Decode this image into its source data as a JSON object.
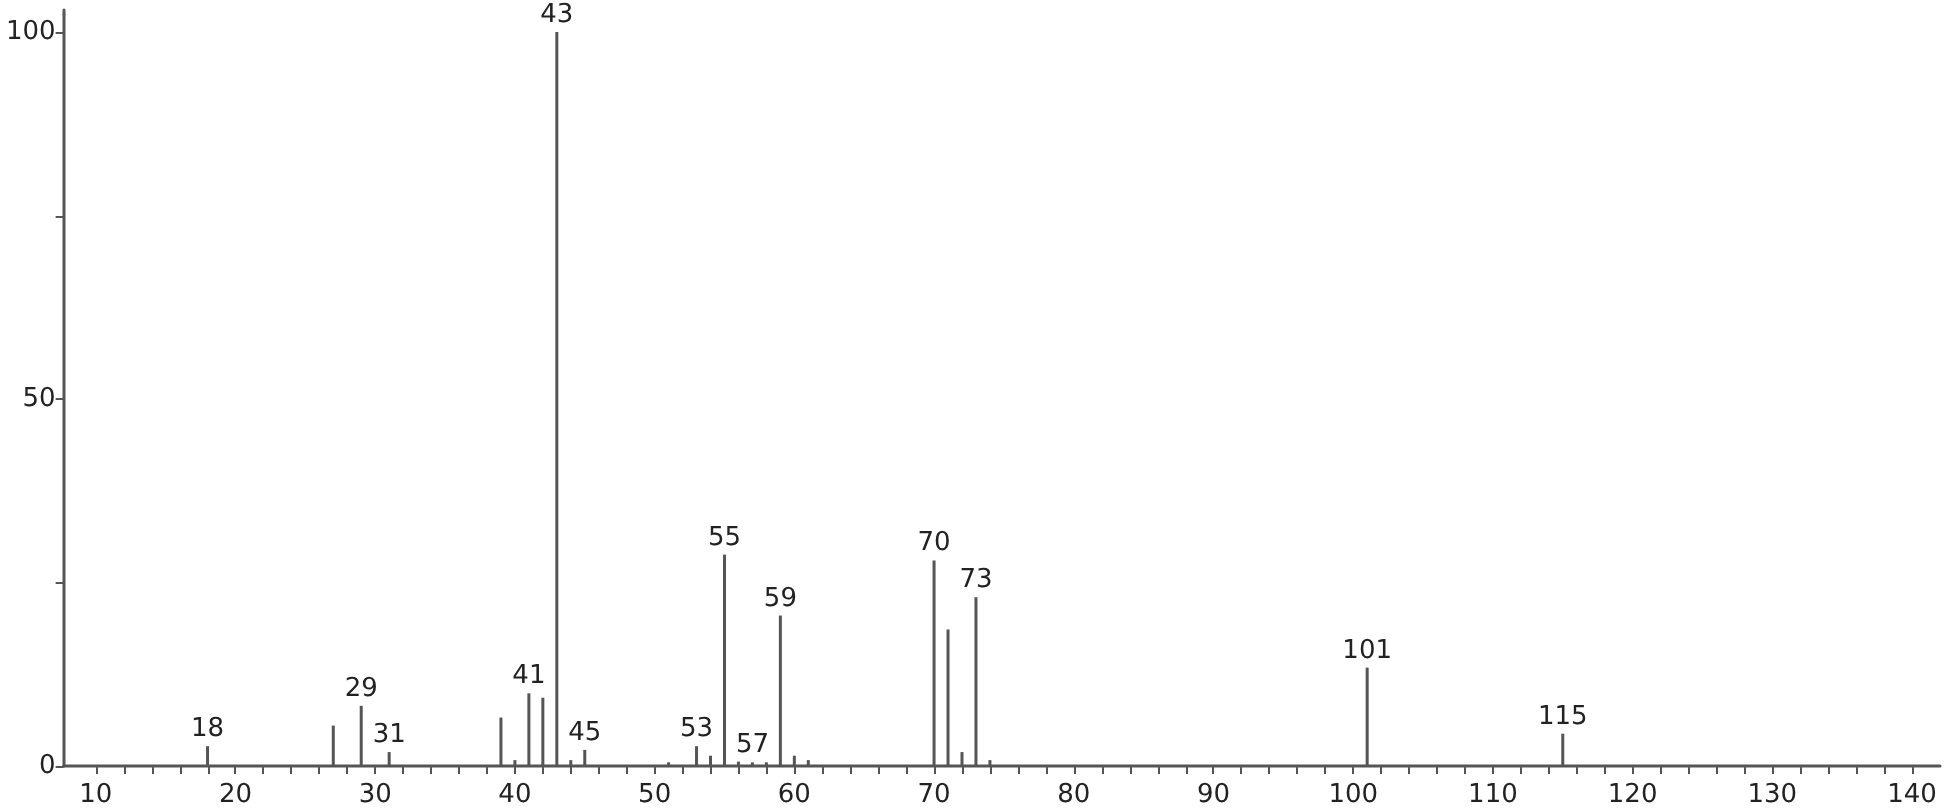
{
  "chart_data": {
    "type": "bar",
    "color": "#555555",
    "x": [
      18,
      27,
      29,
      31,
      39,
      40,
      41,
      42,
      43,
      44,
      45,
      51,
      53,
      54,
      55,
      56,
      57,
      58,
      59,
      60,
      61,
      69,
      70,
      71,
      72,
      73,
      74,
      101,
      115
    ],
    "values": [
      2.7,
      5.5,
      8.2,
      1.9,
      6.6,
      0.8,
      9.9,
      9.3,
      100,
      0.8,
      2.2,
      0.5,
      2.7,
      1.4,
      28.8,
      0.6,
      0.5,
      0.5,
      20.5,
      1.4,
      0.8,
      null,
      28,
      18.6,
      1.9,
      23,
      0.8,
      13.4,
      4.4
    ],
    "xlim": [
      7.7,
      142
    ],
    "xticks": [
      10,
      {
        "value": 12,
        "label": null
      },
      {
        "value": 14,
        "label": null
      },
      {
        "value": 16,
        "label": null
      },
      {
        "value": 18,
        "label": null
      },
      20,
      {
        "value": 22,
        "label": null
      },
      {
        "value": 24,
        "label": null
      },
      {
        "value": 26,
        "label": null
      },
      {
        "value": 28,
        "label": null
      },
      30,
      {
        "value": 32,
        "label": null
      },
      {
        "value": 34,
        "label": null
      },
      {
        "value": 36,
        "label": null
      },
      {
        "value": 38,
        "label": null
      },
      40,
      {
        "value": 42,
        "label": null
      },
      {
        "value": 44,
        "label": null
      },
      {
        "value": 46,
        "label": null
      },
      {
        "value": 48,
        "label": null
      },
      50,
      {
        "value": 52,
        "label": null
      },
      {
        "value": 54,
        "label": null
      },
      {
        "value": 56,
        "label": null
      },
      {
        "value": 58,
        "label": null
      },
      60,
      {
        "value": 62,
        "label": null
      },
      {
        "value": 64,
        "label": null
      },
      {
        "value": 66,
        "label": null
      },
      {
        "value": 68,
        "label": null
      },
      70,
      {
        "value": 72,
        "label": null
      },
      {
        "value": 74,
        "label": null
      },
      {
        "value": 76,
        "label": null
      },
      {
        "value": 78,
        "label": null
      },
      80,
      {
        "value": 82,
        "label": null
      },
      {
        "value": 84,
        "label": null
      },
      {
        "value": 86,
        "label": null
      },
      {
        "value": 88,
        "label": null
      },
      90,
      {
        "value": 92,
        "label": null
      },
      {
        "value": 94,
        "label": null
      },
      {
        "value": 96,
        "label": null
      },
      {
        "value": 98,
        "label": null
      },
      100,
      {
        "value": 102,
        "label": null
      },
      {
        "value": 104,
        "label": null
      },
      {
        "value": 106,
        "label": null
      },
      {
        "value": 108,
        "label": null
      },
      110,
      {
        "value": 112,
        "label": null
      },
      {
        "value": 114,
        "label": null
      },
      {
        "value": 116,
        "label": null
      },
      {
        "value": 118,
        "label": null
      },
      120,
      {
        "value": 122,
        "label": null
      },
      {
        "value": 124,
        "label": null
      },
      {
        "value": 126,
        "label": null
      },
      {
        "value": 128,
        "label": null
      },
      130,
      {
        "value": 132,
        "label": null
      },
      {
        "value": 134,
        "label": null
      },
      {
        "value": 136,
        "label": null
      },
      {
        "value": 138,
        "label": null
      },
      140
    ],
    "ylim": [
      0,
      103
    ],
    "yticks": [
      0,
      {
        "value": 25,
        "label": null
      },
      50,
      {
        "value": 75,
        "label": null
      },
      100
    ],
    "grid": false,
    "annotations": [
      {
        "text": "18",
        "x": 18,
        "y": 2.7
      },
      {
        "text": "29",
        "x": 29,
        "y": 8.2
      },
      {
        "text": "31",
        "x": 31,
        "y": 1.9
      },
      {
        "text": "41",
        "x": 41,
        "y": 9.9
      },
      {
        "text": "43",
        "x": 43,
        "y": 100
      },
      {
        "text": "45",
        "x": 45,
        "y": 2.2
      },
      {
        "text": "53",
        "x": 53,
        "y": 2.7
      },
      {
        "text": "55",
        "x": 55,
        "y": 28.8
      },
      {
        "text": "57",
        "x": 57,
        "y": 0.5
      },
      {
        "text": "59",
        "x": 59,
        "y": 20.5
      },
      {
        "text": "70",
        "x": 70,
        "y": 28
      },
      {
        "text": "73",
        "x": 73,
        "y": 23
      },
      {
        "text": "101",
        "x": 101,
        "y": 13.4
      },
      {
        "text": "115",
        "x": 115,
        "y": 4.4
      }
    ]
  }
}
